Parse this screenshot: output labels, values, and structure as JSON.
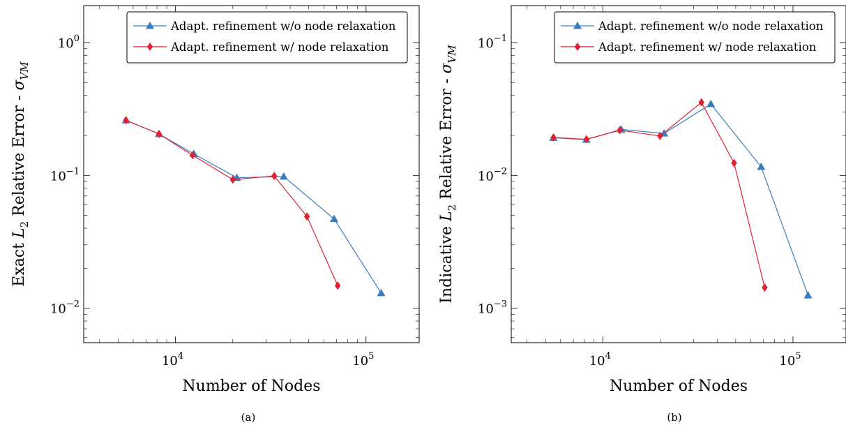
{
  "chart_data": [
    {
      "type": "line",
      "subplot": "a",
      "caption": "(a)",
      "xlabel": "Number of Nodes",
      "ylabel_main": "Exact ",
      "ylabel_italic": "L",
      "ylabel_sub": "2",
      "ylabel_rest": " Relative Error - ",
      "ylabel_sigma": "σ",
      "ylabel_sigma_sub": "VM",
      "x_scale": "log",
      "y_scale": "log",
      "xlim": [
        3300,
        190000
      ],
      "ylim": [
        0.0055,
        1.9
      ],
      "x_ticks": [
        {
          "value": 10000,
          "base": "10",
          "exp": "4"
        },
        {
          "value": 100000,
          "base": "10",
          "exp": "5"
        }
      ],
      "y_ticks": [
        {
          "value": 0.01,
          "base": "10",
          "exp": "−2"
        },
        {
          "value": 0.1,
          "base": "10",
          "exp": "−1"
        },
        {
          "value": 1,
          "base": "10",
          "exp": "0"
        }
      ],
      "legend_position": "top-right",
      "series": [
        {
          "name": "Adapt. refinement w/o node relaxation",
          "color": "#3a7dbf",
          "marker": "triangle",
          "x": [
            5500,
            8200,
            12500,
            21000,
            37000,
            68000,
            120000
          ],
          "y": [
            0.26,
            0.205,
            0.145,
            0.096,
            0.098,
            0.047,
            0.013
          ]
        },
        {
          "name": "Adapt. refinement w/ node relaxation",
          "color": "#dd2233",
          "marker": "diamond",
          "x": [
            5500,
            8200,
            12300,
            20000,
            33000,
            49000,
            71000
          ],
          "y": [
            0.26,
            0.205,
            0.142,
            0.093,
            0.099,
            0.049,
            0.0148
          ]
        }
      ]
    },
    {
      "type": "line",
      "subplot": "b",
      "caption": "(b)",
      "xlabel": "Number of Nodes",
      "ylabel_main": "Indicative ",
      "ylabel_italic": "L",
      "ylabel_sub": "2",
      "ylabel_rest": " Relative Error - ",
      "ylabel_sigma": "σ",
      "ylabel_sigma_sub": "VM",
      "x_scale": "log",
      "y_scale": "log",
      "xlim": [
        3300,
        190000
      ],
      "ylim": [
        0.00055,
        0.19
      ],
      "x_ticks": [
        {
          "value": 10000,
          "base": "10",
          "exp": "4"
        },
        {
          "value": 100000,
          "base": "10",
          "exp": "5"
        }
      ],
      "y_ticks": [
        {
          "value": 0.001,
          "base": "10",
          "exp": "−3"
        },
        {
          "value": 0.01,
          "base": "10",
          "exp": "−2"
        },
        {
          "value": 0.1,
          "base": "10",
          "exp": "−1"
        }
      ],
      "legend_position": "top-right",
      "series": [
        {
          "name": "Adapt. refinement w/o node relaxation",
          "color": "#3a7dbf",
          "marker": "triangle",
          "x": [
            5500,
            8200,
            12500,
            21000,
            37000,
            68000,
            120000
          ],
          "y": [
            0.0192,
            0.0186,
            0.0222,
            0.0207,
            0.0345,
            0.0116,
            0.00125
          ]
        },
        {
          "name": "Adapt. refinement w/ node relaxation",
          "color": "#dd2233",
          "marker": "diamond",
          "x": [
            5500,
            8200,
            12300,
            20000,
            33000,
            49000,
            71000
          ],
          "y": [
            0.0193,
            0.0187,
            0.0219,
            0.0198,
            0.0355,
            0.0124,
            0.00143
          ]
        }
      ]
    }
  ]
}
